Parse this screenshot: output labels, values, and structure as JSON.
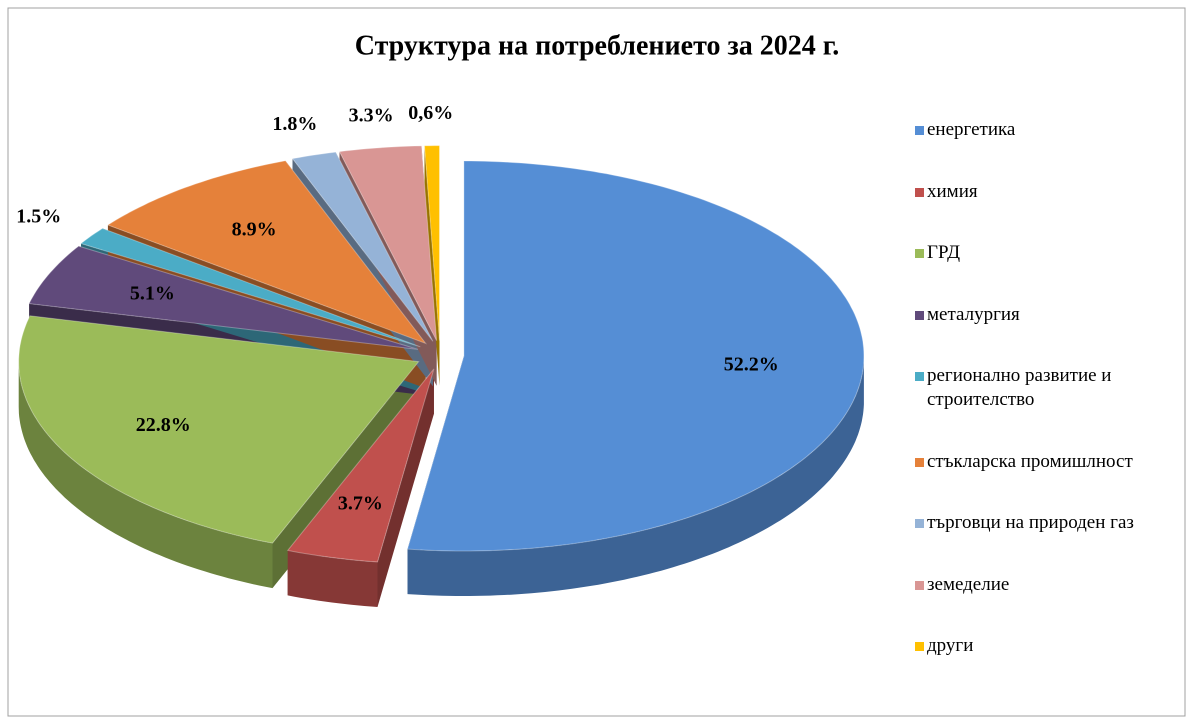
{
  "chart_data": {
    "type": "pie",
    "title": "Структура на потреблението за 2024 г.",
    "categories": [
      "енергетика",
      "химия",
      "ГРД",
      "металургия",
      "регионално развитие и строителство",
      "стъкларска промишлност",
      "търговци на природен газ",
      "земеделие",
      "други"
    ],
    "values": [
      52.2,
      3.7,
      22.8,
      5.1,
      1.5,
      8.9,
      1.8,
      3.3,
      0.6
    ],
    "value_labels": [
      "52.2%",
      "3.7%",
      "22.8%",
      "5.1%",
      "1.5%",
      "8.9%",
      "1.8%",
      "3.3%",
      "0,6%"
    ],
    "colors": [
      "#558ed5",
      "#c0504d",
      "#9bbb59",
      "#604a7b",
      "#4bacc6",
      "#e5813a",
      "#95b3d7",
      "#d99694",
      "#ffc000"
    ],
    "legend": "right"
  }
}
